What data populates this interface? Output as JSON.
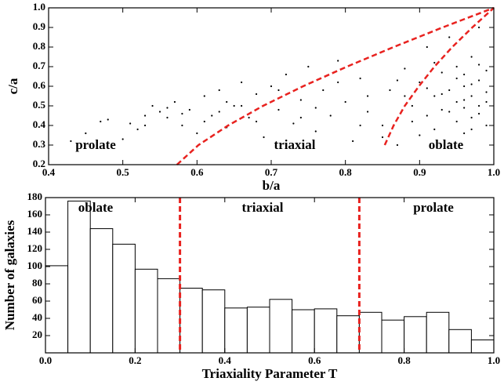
{
  "chart_data": [
    {
      "type": "scatter",
      "xlabel": "b/a",
      "ylabel": "c/a",
      "color": "#000000",
      "x": [
        0.43,
        0.45,
        0.47,
        0.48,
        0.5,
        0.51,
        0.52,
        0.53,
        0.54,
        0.55,
        0.56,
        0.57,
        0.58,
        0.59,
        0.6,
        0.61,
        0.62,
        0.63,
        0.64,
        0.65,
        0.66,
        0.67,
        0.68,
        0.69,
        0.7,
        0.71,
        0.72,
        0.73,
        0.74,
        0.75,
        0.76,
        0.77,
        0.78,
        0.79,
        0.8,
        0.81,
        0.82,
        0.83,
        0.84,
        0.85,
        0.86,
        0.87,
        0.88,
        0.89,
        0.9,
        0.9,
        0.91,
        0.91,
        0.92,
        0.92,
        0.93,
        0.93,
        0.94,
        0.94,
        0.94,
        0.95,
        0.95,
        0.95,
        0.96,
        0.96,
        0.96,
        0.97,
        0.97,
        0.97,
        0.98,
        0.98,
        0.98,
        0.99,
        0.99,
        0.99,
        0.93,
        0.95,
        0.96,
        0.97,
        0.98,
        0.92,
        0.89,
        0.87,
        0.85,
        0.83,
        0.79,
        0.76,
        0.74,
        0.71,
        0.68,
        0.66,
        0.63,
        0.61,
        0.58,
        0.56,
        0.53,
        0.64,
        0.82,
        0.88,
        0.99,
        0.96,
        0.94,
        0.91,
        0.97,
        0.98
      ],
      "y": [
        0.32,
        0.36,
        0.42,
        0.43,
        0.33,
        0.41,
        0.38,
        0.45,
        0.5,
        0.47,
        0.44,
        0.52,
        0.4,
        0.48,
        0.36,
        0.55,
        0.45,
        0.58,
        0.39,
        0.5,
        0.62,
        0.44,
        0.56,
        0.34,
        0.6,
        0.48,
        0.66,
        0.41,
        0.53,
        0.7,
        0.37,
        0.58,
        0.45,
        0.73,
        0.52,
        0.32,
        0.64,
        0.47,
        0.76,
        0.4,
        0.58,
        0.3,
        0.69,
        0.5,
        0.35,
        0.62,
        0.45,
        0.8,
        0.55,
        0.38,
        0.67,
        0.48,
        0.31,
        0.58,
        0.85,
        0.52,
        0.42,
        0.7,
        0.6,
        0.36,
        0.49,
        0.55,
        0.75,
        0.44,
        0.63,
        0.5,
        0.9,
        0.57,
        0.4,
        0.68,
        0.56,
        0.64,
        0.53,
        0.61,
        0.46,
        0.72,
        0.42,
        0.63,
        0.34,
        0.55,
        0.62,
        0.49,
        0.44,
        0.58,
        0.42,
        0.5,
        0.47,
        0.42,
        0.46,
        0.49,
        0.4,
        0.52,
        0.4,
        0.55,
        0.52,
        0.66,
        0.47,
        0.59,
        0.38,
        0.71
      ],
      "lines": [
        {
          "color": "#e8221f",
          "x": [
            0.573,
            0.602,
            0.642,
            0.689,
            0.743,
            0.802,
            0.865,
            0.931,
            1.0
          ],
          "y": [
            0.2,
            0.3,
            0.4,
            0.5,
            0.6,
            0.7,
            0.8,
            0.9,
            1.0
          ]
        },
        {
          "color": "#e8221f",
          "x": [
            0.853,
            0.865,
            0.88,
            0.899,
            0.92,
            0.944,
            0.971,
            1.0
          ],
          "y": [
            0.3,
            0.4,
            0.5,
            0.6,
            0.7,
            0.8,
            0.9,
            1.0
          ]
        }
      ],
      "annotations": [
        "prolate",
        "triaxial",
        "oblate"
      ],
      "xlim": [
        0.4,
        1.0
      ],
      "ylim": [
        0.2,
        1.0
      ],
      "xticks": [
        0.4,
        0.5,
        0.6,
        0.7,
        0.8,
        0.9,
        {
          "value": 1.0,
          "label": "1.0"
        }
      ],
      "yticks": [
        0.2,
        0.3,
        0.4,
        0.5,
        0.6,
        0.7,
        0.8,
        0.9,
        {
          "value": 1.0,
          "label": "1.0"
        }
      ]
    },
    {
      "type": "histogram",
      "xlabel": "Triaxiality Parameter  T",
      "ylabel": "Number of galaxies",
      "color": "#ffffff",
      "edgecolor": "#000000",
      "bins": [
        0,
        0.05,
        0.1,
        0.15,
        0.2,
        0.25,
        0.3,
        0.35,
        0.4,
        0.45,
        0.5,
        0.55,
        0.6,
        0.65,
        0.7,
        0.75,
        0.8,
        0.85,
        0.9,
        0.95,
        1.0
      ],
      "values": [
        101,
        176,
        144,
        126,
        97,
        86,
        75,
        73,
        52,
        53,
        62,
        50,
        51,
        43,
        47,
        38,
        42,
        47,
        27,
        15
      ],
      "vlines": [
        0.3,
        0.7
      ],
      "vline_color": "#e8221f",
      "annotations": [
        "oblate",
        "triaxial",
        "prolate"
      ],
      "xlim": [
        0,
        1.0
      ],
      "ylim": [
        0,
        180
      ],
      "xticks": [
        {
          "value": 0,
          "label": "0.0"
        },
        0.2,
        0.4,
        0.6,
        0.8,
        {
          "value": 1.0,
          "label": "1.0"
        }
      ],
      "yticks": [
        20,
        40,
        60,
        80,
        100,
        120,
        140,
        160,
        180
      ]
    }
  ]
}
